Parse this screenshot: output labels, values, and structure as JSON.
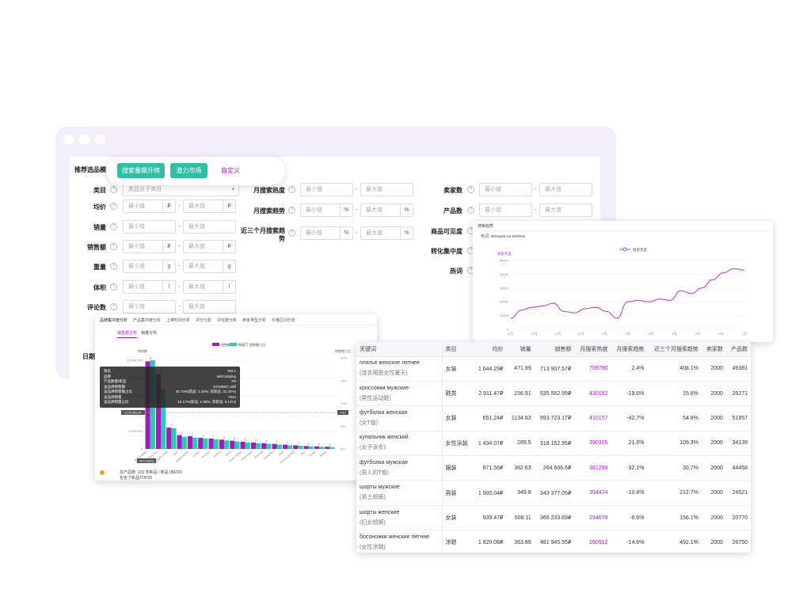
{
  "form": {
    "mode_label": "推荐选品模式",
    "mode_buttons": [
      "搜索量飙升榜",
      "潜力市场",
      "自定义"
    ],
    "placeholder_min": "最小值",
    "placeholder_max": "最大值",
    "category_placeholder": "类目及子类目",
    "labels": {
      "category": "类目",
      "avg_price": "均价",
      "sales": "销量",
      "revenue": "销售额",
      "weight": "重量",
      "volume": "体积",
      "reviews": "评论数",
      "date_cut": "日期",
      "monthly_heat": "月搜索热度",
      "monthly_trend": "月搜索趋势",
      "three_month_trend": "近三个月搜索趋势",
      "sellers": "卖家数",
      "products": "产品数",
      "visibility": "商品可见度",
      "concentration": "转化集中度",
      "keyword": "热词"
    },
    "units": {
      "rub": "₽",
      "g": "g",
      "l": "l",
      "pct": "%"
    }
  },
  "bar_card": {
    "tabs": [
      "品牌集中度分析",
      "产品集中度分析",
      "上架时间分析",
      "评分分析",
      "评论数分析",
      "卖家类型分析",
      "价格区间分析"
    ],
    "subtabs": [
      "销售额分布",
      "销量分布"
    ],
    "legend": [
      "销售额",
      "数量",
      "销售额占比"
    ],
    "y_left_title": "销售额",
    "y_right_title": "销售额占比",
    "y_left_ticks": [
      "25,000,000",
      "20,000,000",
      "15,000,000",
      "10,000,000",
      "5,000,000",
      "0"
    ],
    "y_right_ticks": [
      "20%",
      "15%",
      "10%",
      "5%",
      "0%"
    ],
    "crosshair_value": "8,731,851.24",
    "crosshair_right": "0.40",
    "tooltip": {
      "rows": [
        [
          "排名",
          "NO.1"
        ],
        [
          "品牌",
          "MirCamping"
        ],
        [
          "产品数量/新品",
          "7/0"
        ],
        [
          "该品牌销售额",
          "24728807.33₽"
        ],
        [
          "该品牌销售额占比",
          "35.73%(新品: 3.26%; 非新品: 32.44%)"
        ],
        [
          "该品牌销量",
          "7644"
        ],
        [
          "该品牌销量占比",
          "10.17%(新品: 1.96%; 非新品: 8.14%)"
        ]
      ]
    },
    "x_highlight": "MirCamping",
    "footer_line1": "总产品数: 100 非新品 / 新品 (80/20)",
    "footer_line2": "包含了新品TOP20",
    "chart_data": {
      "type": "bar",
      "categories": [
        "MirCamping",
        "Quechua",
        "Jungle Camp",
        "NGT",
        "DOMOSHOP",
        "Lanyu",
        "Premier",
        "Sahara",
        "Nisus",
        "Green Glade",
        "Outventure",
        "Greenell",
        "Camp Ru",
        "Atlas",
        "OSCILLATION",
        "Eco",
        "Tramp",
        "Brand"
      ],
      "series": [
        {
          "name": "销售额",
          "values": [
            24700000,
            21000000,
            6000000,
            3900000,
            3600000,
            3100000,
            2900000,
            2600000,
            2300000,
            2000000,
            1800000,
            1600000,
            1400000,
            1200000,
            1000000,
            800000,
            700000,
            600000
          ]
        },
        {
          "name": "数量",
          "values": [
            25000000,
            17000000,
            5800000,
            3400000,
            3200000,
            2900000,
            2700000,
            2400000,
            2100000,
            1800000,
            1600000,
            1400000,
            1200000,
            1000000,
            900000,
            700000,
            600000,
            500000
          ]
        }
      ],
      "labels": [
        8,
        3,
        7,
        2,
        1,
        1,
        1,
        2,
        3,
        1,
        2,
        2,
        1,
        1,
        1,
        1,
        1,
        1
      ],
      "ylim": [
        0,
        25000000
      ]
    }
  },
  "line_card": {
    "title": "搜索趋势",
    "subtitle": "热词: женщин на колени",
    "legend": "搜索热度",
    "y_ticks": [
      "50000",
      "40000",
      "30000",
      "20000",
      "10000",
      "0"
    ],
    "y_series_label": "搜索热度",
    "x_ticks": [
      "9月",
      "10月",
      "11月",
      "12月",
      "1月",
      "2月",
      "3月",
      "4月",
      "5月",
      "6月",
      "7月"
    ],
    "chart_data": {
      "type": "line",
      "series": [
        {
          "name": "搜索热度",
          "values": [
            8000,
            14000,
            16000,
            17000,
            19000,
            13000,
            12000,
            15000,
            16000,
            13000,
            8000,
            20000,
            21000,
            20000,
            22000,
            21000,
            28000,
            26000,
            30000,
            36000,
            41000,
            44000,
            43000
          ]
        }
      ],
      "ylim": [
        0,
        50000
      ]
    }
  },
  "table": {
    "headers": [
      "关键词",
      "类目",
      "均价",
      "销量",
      "销售额",
      "月搜索热度",
      "月搜索趋势",
      "近三个月搜索趋势",
      "卖家数",
      "产品数"
    ],
    "rows": [
      {
        "kw": "платье женское летнее",
        "kw_cn": "(连衣裙是女性夏天)",
        "cat": "女装",
        "price": "1 644.29₽",
        "sales": "471.99",
        "revenue": "713 907.57₽",
        "heat": "709790",
        "trend": "2.4%",
        "trend3": "408.1%",
        "sellers": "2000",
        "products": "49381"
      },
      {
        "kw": "кроссовки мужские",
        "kw_cn": "(男性运动鞋)",
        "cat": "鞋类",
        "price": "2 911.47₽",
        "sales": "156.91",
        "revenue": "535 562.99₽",
        "heat": "430162",
        "trend": "-19.6%",
        "trend3": "15.6%",
        "sellers": "2000",
        "products": "26271"
      },
      {
        "kw": "футболка женская",
        "kw_cn": "(女T恤)",
        "cat": "女装",
        "price": "651.24₽",
        "sales": "1134.63",
        "revenue": "993 723.17₽",
        "heat": "410157",
        "trend": "-42.7%",
        "trend3": "54.8%",
        "sellers": "2000",
        "products": "51857"
      },
      {
        "kw": "купальник женский",
        "kw_cn": "(女子泳衣)",
        "cat": "女性泳装",
        "price": "1 434.07₽",
        "sales": "289.5",
        "revenue": "318 162.95₽",
        "heat": "390305",
        "trend": "21.6%",
        "trend3": "109.3%",
        "sellers": "2000",
        "products": "34139"
      },
      {
        "kw": "футболка мужская",
        "kw_cn": "(男人的T恤)",
        "cat": "服装",
        "price": "671.56₽",
        "sales": "362.63",
        "revenue": "264 606.6₽",
        "heat": "361295",
        "trend": "-32.1%",
        "trend3": "30.7%",
        "sellers": "2000",
        "products": "44458"
      },
      {
        "kw": "шорты мужские",
        "kw_cn": "(男士短裤)",
        "cat": "男装",
        "price": "1 005.04₽",
        "sales": "349.8",
        "revenue": "343 377.05₽",
        "heat": "354474",
        "trend": "-10.4%",
        "trend3": "212.7%",
        "sellers": "2000",
        "products": "24521"
      },
      {
        "kw": "шорты женские",
        "kw_cn": "(妇女短裤)",
        "cat": "女装",
        "price": "939.47₽",
        "sales": "508.11",
        "revenue": "366 233.69₽",
        "heat": "294679",
        "trend": "-9.6%",
        "trend3": "156.1%",
        "sellers": "2000",
        "products": "20770"
      },
      {
        "kw": "босоножки женские летние",
        "kw_cn": "(女性凉鞋)",
        "cat": "凉鞋",
        "price": "1 820.08₽",
        "sales": "363.89",
        "revenue": "481 945.55₽",
        "heat": "260912",
        "trend": "-14.6%",
        "trend3": "492.1%",
        "sellers": "2000",
        "products": "26750"
      }
    ]
  },
  "colors": {
    "accent": "#2ebfa5",
    "purple": "#9b1fb8",
    "teal": "#2ec9b0",
    "custom": "#a020c0",
    "window": "#f2effb"
  }
}
